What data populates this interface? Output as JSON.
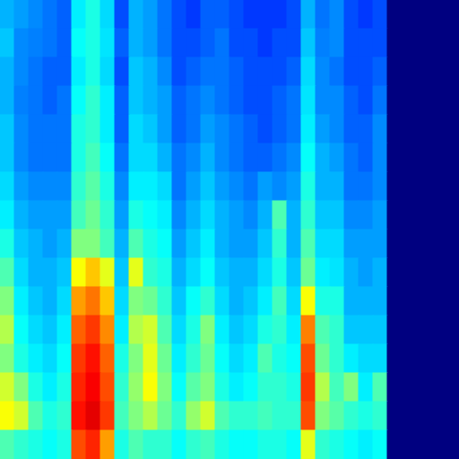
{
  "chart_data": {
    "type": "heatmap",
    "tick_labels": false,
    "color": "jet",
    "xlim": [
      0,
      32
    ],
    "ylim": [
      0,
      16
    ],
    "zlim": [
      0,
      1
    ],
    "cells": [
      [
        0.3,
        0.28,
        0.26,
        0.24,
        0.22,
        0.36,
        0.4,
        0.34,
        0.2,
        0.3,
        0.28,
        0.24,
        0.2,
        0.18,
        0.22,
        0.22,
        0.2,
        0.18,
        0.18,
        0.18,
        0.2,
        0.3,
        0.24,
        0.26,
        0.2,
        0.18,
        0.2,
        0,
        0,
        0,
        0,
        0
      ],
      [
        0.32,
        0.26,
        0.25,
        0.24,
        0.22,
        0.38,
        0.4,
        0.35,
        0.22,
        0.3,
        0.28,
        0.24,
        0.2,
        0.2,
        0.22,
        0.24,
        0.2,
        0.2,
        0.18,
        0.2,
        0.2,
        0.32,
        0.25,
        0.26,
        0.2,
        0.2,
        0.2,
        0,
        0,
        0,
        0,
        0
      ],
      [
        0.3,
        0.26,
        0.24,
        0.22,
        0.22,
        0.36,
        0.4,
        0.34,
        0.2,
        0.32,
        0.3,
        0.26,
        0.2,
        0.22,
        0.24,
        0.24,
        0.22,
        0.2,
        0.2,
        0.2,
        0.22,
        0.34,
        0.26,
        0.24,
        0.2,
        0.2,
        0.22,
        0,
        0,
        0,
        0,
        0
      ],
      [
        0.3,
        0.25,
        0.24,
        0.22,
        0.24,
        0.38,
        0.42,
        0.36,
        0.22,
        0.32,
        0.3,
        0.28,
        0.22,
        0.24,
        0.26,
        0.24,
        0.22,
        0.2,
        0.2,
        0.22,
        0.24,
        0.35,
        0.26,
        0.26,
        0.22,
        0.2,
        0.24,
        0,
        0,
        0,
        0,
        0
      ],
      [
        0.32,
        0.26,
        0.24,
        0.24,
        0.24,
        0.4,
        0.42,
        0.36,
        0.22,
        0.34,
        0.32,
        0.28,
        0.22,
        0.24,
        0.28,
        0.26,
        0.24,
        0.22,
        0.2,
        0.22,
        0.24,
        0.36,
        0.28,
        0.26,
        0.22,
        0.22,
        0.26,
        0,
        0,
        0,
        0,
        0
      ],
      [
        0.32,
        0.26,
        0.24,
        0.24,
        0.24,
        0.4,
        0.44,
        0.38,
        0.24,
        0.34,
        0.34,
        0.3,
        0.24,
        0.26,
        0.3,
        0.26,
        0.24,
        0.22,
        0.22,
        0.24,
        0.26,
        0.38,
        0.3,
        0.28,
        0.24,
        0.22,
        0.26,
        0,
        0,
        0,
        0,
        0
      ],
      [
        0.34,
        0.28,
        0.26,
        0.26,
        0.26,
        0.42,
        0.46,
        0.4,
        0.26,
        0.36,
        0.36,
        0.34,
        0.24,
        0.28,
        0.32,
        0.28,
        0.26,
        0.24,
        0.28,
        0.26,
        0.28,
        0.4,
        0.3,
        0.3,
        0.24,
        0.24,
        0.26,
        0,
        0,
        0,
        0,
        0
      ],
      [
        0.36,
        0.3,
        0.28,
        0.28,
        0.28,
        0.44,
        0.48,
        0.42,
        0.28,
        0.4,
        0.38,
        0.36,
        0.26,
        0.3,
        0.34,
        0.3,
        0.28,
        0.26,
        0.3,
        0.45,
        0.3,
        0.42,
        0.32,
        0.32,
        0.26,
        0.26,
        0.28,
        0,
        0,
        0,
        0,
        0
      ],
      [
        0.4,
        0.32,
        0.3,
        0.28,
        0.3,
        0.5,
        0.5,
        0.44,
        0.3,
        0.45,
        0.4,
        0.38,
        0.28,
        0.32,
        0.36,
        0.3,
        0.28,
        0.28,
        0.32,
        0.42,
        0.3,
        0.45,
        0.34,
        0.34,
        0.28,
        0.28,
        0.28,
        0,
        0,
        0,
        0,
        0
      ],
      [
        0.45,
        0.34,
        0.3,
        0.3,
        0.32,
        0.62,
        0.68,
        0.6,
        0.32,
        0.6,
        0.42,
        0.4,
        0.3,
        0.34,
        0.38,
        0.32,
        0.3,
        0.3,
        0.34,
        0.4,
        0.32,
        0.48,
        0.36,
        0.35,
        0.3,
        0.28,
        0.3,
        0,
        0,
        0,
        0,
        0
      ],
      [
        0.5,
        0.36,
        0.32,
        0.3,
        0.34,
        0.72,
        0.76,
        0.68,
        0.34,
        0.5,
        0.48,
        0.42,
        0.32,
        0.38,
        0.42,
        0.34,
        0.3,
        0.32,
        0.36,
        0.44,
        0.34,
        0.62,
        0.4,
        0.4,
        0.3,
        0.3,
        0.3,
        0,
        0,
        0,
        0,
        0
      ],
      [
        0.55,
        0.38,
        0.34,
        0.32,
        0.36,
        0.78,
        0.82,
        0.74,
        0.36,
        0.55,
        0.58,
        0.45,
        0.34,
        0.4,
        0.5,
        0.36,
        0.32,
        0.34,
        0.4,
        0.42,
        0.36,
        0.75,
        0.45,
        0.42,
        0.32,
        0.32,
        0.32,
        0,
        0,
        0,
        0,
        0
      ],
      [
        0.5,
        0.4,
        0.36,
        0.34,
        0.38,
        0.82,
        0.86,
        0.78,
        0.4,
        0.5,
        0.6,
        0.48,
        0.36,
        0.42,
        0.48,
        0.38,
        0.34,
        0.36,
        0.45,
        0.4,
        0.38,
        0.8,
        0.48,
        0.42,
        0.36,
        0.34,
        0.34,
        0,
        0,
        0,
        0,
        0
      ],
      [
        0.58,
        0.5,
        0.4,
        0.36,
        0.4,
        0.84,
        0.88,
        0.8,
        0.42,
        0.52,
        0.62,
        0.5,
        0.38,
        0.46,
        0.5,
        0.4,
        0.36,
        0.38,
        0.42,
        0.42,
        0.4,
        0.82,
        0.55,
        0.44,
        0.5,
        0.36,
        0.45,
        0,
        0,
        0,
        0,
        0
      ],
      [
        0.62,
        0.58,
        0.45,
        0.4,
        0.42,
        0.86,
        0.9,
        0.82,
        0.44,
        0.5,
        0.55,
        0.48,
        0.42,
        0.52,
        0.58,
        0.45,
        0.42,
        0.42,
        0.44,
        0.42,
        0.42,
        0.8,
        0.5,
        0.46,
        0.42,
        0.4,
        0.42,
        0,
        0,
        0,
        0,
        0
      ],
      [
        0.45,
        0.42,
        0.4,
        0.38,
        0.4,
        0.8,
        0.84,
        0.72,
        0.4,
        0.45,
        0.42,
        0.42,
        0.38,
        0.42,
        0.44,
        0.4,
        0.38,
        0.38,
        0.4,
        0.4,
        0.38,
        0.6,
        0.42,
        0.4,
        0.38,
        0.36,
        0.38,
        0,
        0,
        0,
        0,
        0
      ]
    ]
  }
}
